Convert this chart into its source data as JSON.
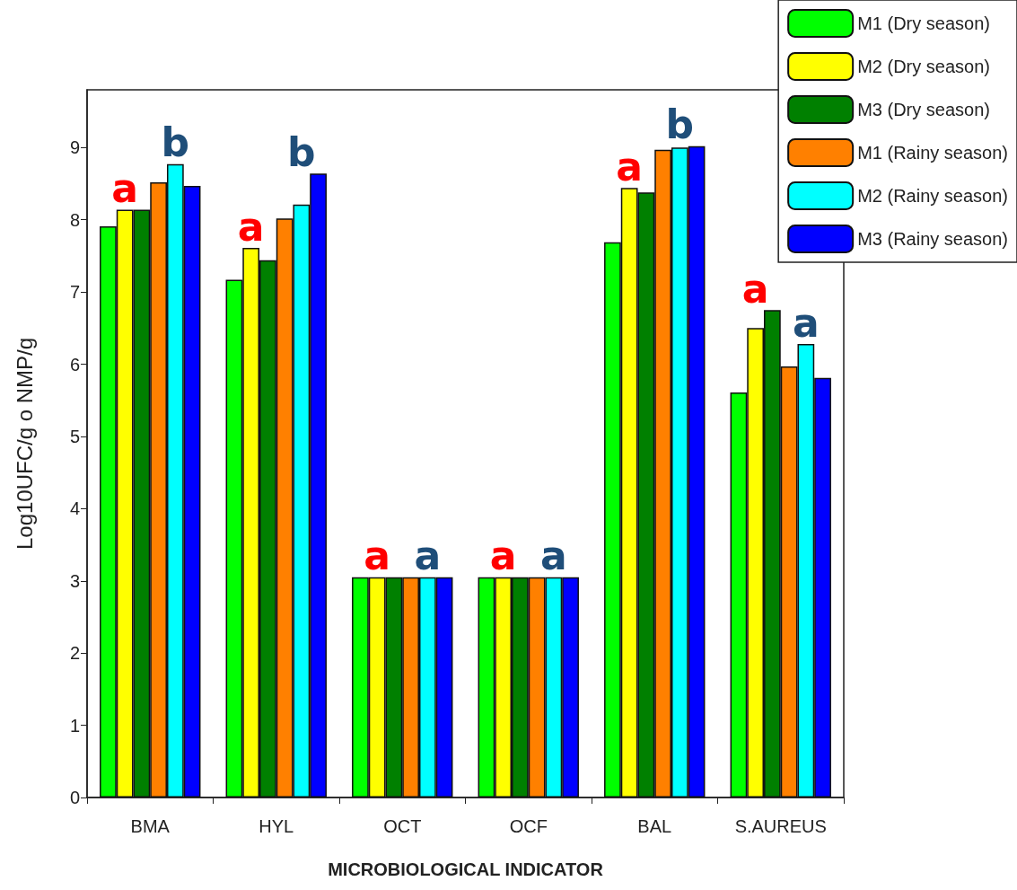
{
  "chart_data": {
    "type": "bar",
    "xlabel": "MICROBIOLOGICAL INDICATOR",
    "ylabel": "Log10UFC/g o NMP/g",
    "categories": [
      "BMA",
      "HYL",
      "OCT",
      "OCF",
      "BAL",
      "S.AUREUS"
    ],
    "series": [
      {
        "name": "M1 (Dry season)",
        "color": "#00ff00",
        "values": [
          7.91,
          7.17,
          3.05,
          3.05,
          7.69,
          5.61
        ]
      },
      {
        "name": "M2 (Dry season)",
        "color": "#ffff00",
        "values": [
          8.14,
          7.61,
          3.05,
          3.05,
          8.44,
          6.5
        ]
      },
      {
        "name": "M3 (Dry season)",
        "color": "#008000",
        "values": [
          8.14,
          7.44,
          3.05,
          3.05,
          8.38,
          6.75
        ]
      },
      {
        "name": "M1 (Rainy season)",
        "color": "#ff8000",
        "values": [
          8.52,
          8.02,
          3.05,
          3.05,
          8.97,
          5.97
        ]
      },
      {
        "name": "M2 (Rainy season)",
        "color": "#00ffff",
        "values": [
          8.77,
          8.21,
          3.05,
          3.05,
          9.0,
          6.28
        ]
      },
      {
        "name": "M3 (Rainy season)",
        "color": "#0000ff",
        "values": [
          8.47,
          8.64,
          3.05,
          3.05,
          9.02,
          5.81
        ]
      }
    ],
    "ylim": [
      0,
      9.8
    ],
    "yticks": [
      0,
      1,
      2,
      3,
      4,
      5,
      6,
      7,
      8,
      9
    ],
    "grid": false,
    "legend": "top right",
    "annotations": [
      "a",
      "b",
      "a",
      "b",
      "a",
      "a",
      "a",
      "a",
      "a",
      "b",
      "a",
      "a"
    ]
  }
}
